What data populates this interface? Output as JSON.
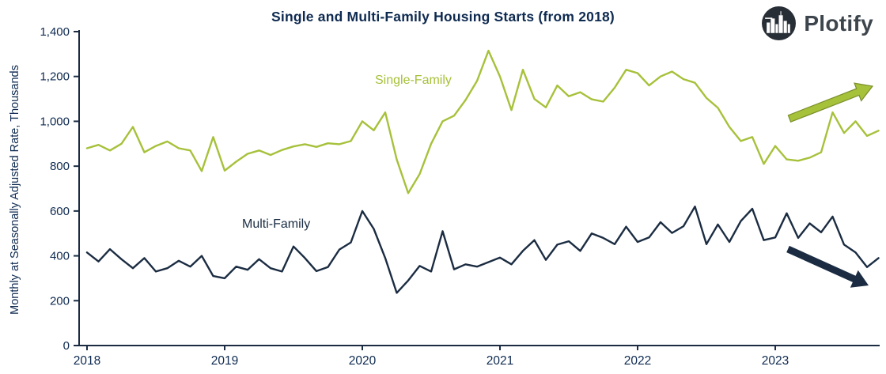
{
  "header": {
    "brand_name": "Plotify"
  },
  "chart_data": {
    "type": "line",
    "title": "Single and Multi-Family Housing Starts (from 2018)",
    "xlabel": "",
    "ylabel": "Monthly at Seasonally Adjusted Rate, Thousands",
    "x_start": "2018-01",
    "x_frequency": "monthly",
    "x_tick_labels": [
      "2018",
      "2019",
      "2020",
      "2021",
      "2022",
      "2023"
    ],
    "y_ticks": [
      0,
      200,
      400,
      600,
      800,
      1000,
      1200,
      1400
    ],
    "y_tick_labels": [
      "0",
      "200",
      "400",
      "600",
      "800",
      "1,000",
      "1,200",
      "1,400"
    ],
    "ylim": [
      0,
      1400
    ],
    "grid": false,
    "legend": "inline-labels",
    "colors": {
      "single_family": "#a6c13a",
      "multi_family": "#1b2c42",
      "axis": "#1b2c42",
      "text": "#0e2a50"
    },
    "series": [
      {
        "name": "Single-Family",
        "color": "#a6c13a",
        "values": [
          880,
          895,
          870,
          900,
          975,
          862,
          890,
          910,
          880,
          870,
          778,
          930,
          780,
          820,
          855,
          870,
          850,
          872,
          888,
          898,
          886,
          902,
          898,
          912,
          1000,
          960,
          1040,
          830,
          680,
          765,
          900,
          1000,
          1025,
          1095,
          1180,
          1315,
          1200,
          1050,
          1230,
          1100,
          1062,
          1160,
          1112,
          1130,
          1098,
          1088,
          1150,
          1230,
          1215,
          1160,
          1200,
          1222,
          1188,
          1172,
          1104,
          1060,
          975,
          912,
          930,
          810,
          890,
          830,
          824,
          838,
          862,
          1040,
          948,
          1000,
          935,
          958
        ]
      },
      {
        "name": "Multi-Family",
        "color": "#1b2c42",
        "values": [
          415,
          375,
          430,
          385,
          345,
          390,
          330,
          345,
          378,
          352,
          400,
          310,
          300,
          352,
          338,
          385,
          345,
          330,
          442,
          390,
          332,
          350,
          428,
          460,
          600,
          520,
          390,
          235,
          290,
          355,
          330,
          510,
          340,
          362,
          352,
          372,
          392,
          362,
          422,
          470,
          382,
          450,
          465,
          422,
          500,
          480,
          452,
          530,
          462,
          482,
          550,
          502,
          532,
          620,
          452,
          540,
          462,
          555,
          610,
          470,
          482,
          590,
          480,
          545,
          505,
          575,
          450,
          415,
          350,
          390
        ]
      }
    ],
    "annotations": {
      "single_family_label": "Single-Family",
      "multi_family_label": "Multi-Family",
      "trend_arrows": [
        {
          "series": "Single-Family",
          "direction": "up-right",
          "color": "#a6c13a"
        },
        {
          "series": "Multi-Family",
          "direction": "down-right",
          "color": "#1b2c42"
        }
      ]
    }
  }
}
